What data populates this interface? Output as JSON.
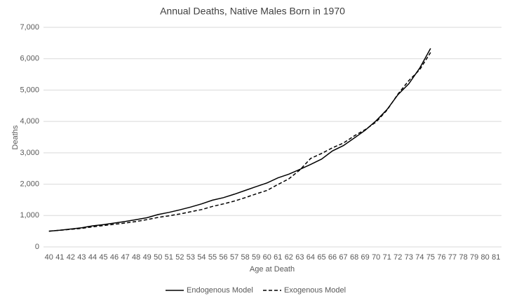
{
  "chart_data": {
    "type": "line",
    "title": "Annual Deaths, Native Males Born in 1970",
    "x_label": "Age at Death",
    "y_label": "Deaths",
    "categories": [
      "40",
      "41",
      "42",
      "43",
      "44",
      "45",
      "46",
      "47",
      "48",
      "49",
      "50",
      "51",
      "52",
      "53",
      "54",
      "55",
      "56",
      "57",
      "58",
      "59",
      "60",
      "61",
      "62",
      "63",
      "64",
      "65",
      "66",
      "67",
      "68",
      "69",
      "70",
      "71",
      "72",
      "73",
      "74",
      "75",
      "76",
      "77",
      "78",
      "79",
      "80",
      "81"
    ],
    "series": [
      {
        "name": "Endogenous Model",
        "color": "#000000",
        "dash": "solid",
        "values": [
          500,
          530,
          570,
          610,
          670,
          710,
          760,
          810,
          870,
          930,
          1030,
          1100,
          1180,
          1270,
          1370,
          1490,
          1570,
          1680,
          1800,
          1920,
          2040,
          2200,
          2320,
          2470,
          2630,
          2800,
          3060,
          3230,
          3470,
          3720,
          4020,
          4380,
          4850,
          5200,
          5700,
          6330,
          null,
          null,
          null,
          null,
          null,
          null
        ]
      },
      {
        "name": "Exogenous Model",
        "color": "#000000",
        "dash": "dashed",
        "values": [
          500,
          530,
          560,
          590,
          640,
          680,
          720,
          760,
          810,
          870,
          940,
          990,
          1050,
          1120,
          1190,
          1290,
          1370,
          1460,
          1570,
          1690,
          1800,
          1990,
          2170,
          2450,
          2820,
          2980,
          3160,
          3310,
          3540,
          3740,
          3980,
          4360,
          4870,
          5300,
          5650,
          6200,
          null,
          null,
          null,
          null,
          null,
          null
        ]
      }
    ],
    "ylim": [
      0,
      7000
    ],
    "yticks": [
      0,
      {
        "value": 1000,
        "label": "1,000"
      },
      {
        "value": 2000,
        "label": "2,000"
      },
      {
        "value": 3000,
        "label": "3,000"
      },
      {
        "value": 4000,
        "label": "4,000"
      },
      {
        "value": 5000,
        "label": "5,000"
      },
      {
        "value": 6000,
        "label": "6,000"
      },
      {
        "value": 7000,
        "label": "7,000"
      }
    ],
    "grid": true,
    "legend": "bottom"
  }
}
